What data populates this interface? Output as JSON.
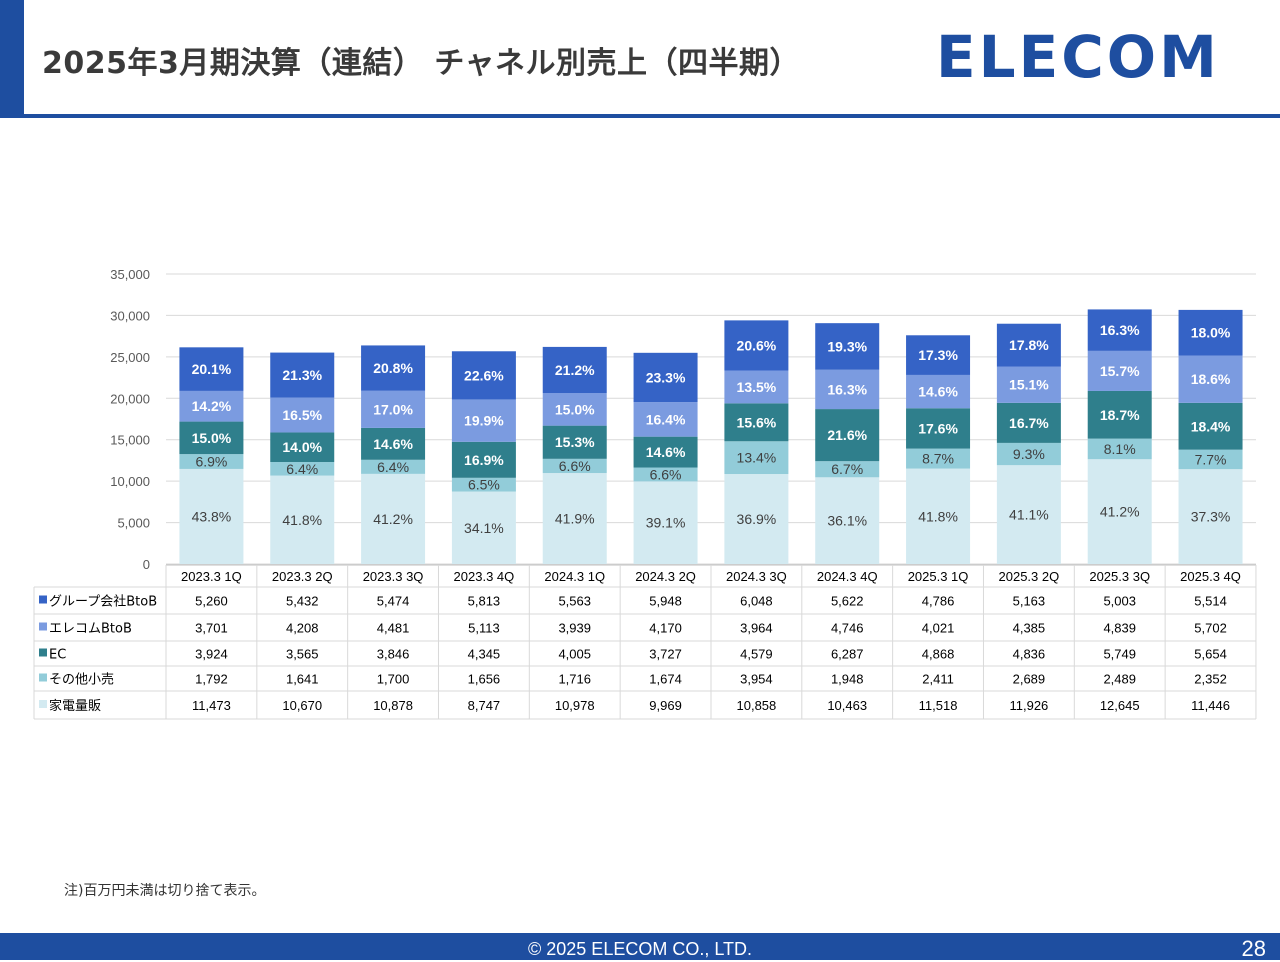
{
  "header": {
    "title": "2025年3月期決算（連結） チャネル別売上（四半期）",
    "logo_text": "ELECOM",
    "accent_color": "#1e4ea0"
  },
  "chart_data": {
    "type": "bar",
    "stacked": true,
    "title": "",
    "xlabel": "",
    "ylabel": "",
    "ylim": [
      0,
      35000
    ],
    "yticks": [
      "0",
      "5,000",
      "10,000",
      "15,000",
      "20,000",
      "25,000",
      "30,000",
      "35,000"
    ],
    "grid": true,
    "legend": "table-rows",
    "categories": [
      "2023.3 1Q",
      "2023.3 2Q",
      "2023.3 3Q",
      "2023.3 4Q",
      "2024.3 1Q",
      "2024.3 2Q",
      "2024.3 3Q",
      "2024.3 4Q",
      "2025.3 1Q",
      "2025.3 2Q",
      "2025.3 3Q",
      "2025.3 4Q"
    ],
    "series": [
      {
        "name": "家電量販",
        "color": "#d3eaf1",
        "label_color": "#3f3f3f",
        "values": [
          11473,
          10670,
          10878,
          8747,
          10978,
          9969,
          10858,
          10463,
          11518,
          11926,
          12645,
          11446
        ],
        "values_text": [
          "11,473",
          "10,670",
          "10,878",
          "8,747",
          "10,978",
          "9,969",
          "10,858",
          "10,463",
          "11,518",
          "11,926",
          "12,645",
          "11,446"
        ],
        "percents": [
          "43.8%",
          "41.8%",
          "41.2%",
          "34.1%",
          "41.9%",
          "39.1%",
          "36.9%",
          "36.1%",
          "41.8%",
          "41.1%",
          "41.2%",
          "37.3%"
        ]
      },
      {
        "name": "その他小売",
        "color": "#92ccd9",
        "label_color": "#3f3f3f",
        "values": [
          1792,
          1641,
          1700,
          1656,
          1716,
          1674,
          3954,
          1948,
          2411,
          2689,
          2489,
          2352
        ],
        "values_text": [
          "1,792",
          "1,641",
          "1,700",
          "1,656",
          "1,716",
          "1,674",
          "3,954",
          "1,948",
          "2,411",
          "2,689",
          "2,489",
          "2,352"
        ],
        "percents": [
          "6.9%",
          "6.4%",
          "6.4%",
          "6.5%",
          "6.6%",
          "6.6%",
          "13.4%",
          "6.7%",
          "8.7%",
          "9.3%",
          "8.1%",
          "7.7%"
        ]
      },
      {
        "name": "EC",
        "color": "#2f7f8c",
        "label_color": "#ffffff",
        "values": [
          3924,
          3565,
          3846,
          4345,
          4005,
          3727,
          4579,
          6287,
          4868,
          4836,
          5749,
          5654
        ],
        "values_text": [
          "3,924",
          "3,565",
          "3,846",
          "4,345",
          "4,005",
          "3,727",
          "4,579",
          "6,287",
          "4,868",
          "4,836",
          "5,749",
          "5,654"
        ],
        "percents": [
          "15.0%",
          "14.0%",
          "14.6%",
          "16.9%",
          "15.3%",
          "14.6%",
          "15.6%",
          "21.6%",
          "17.6%",
          "16.7%",
          "18.7%",
          "18.4%"
        ]
      },
      {
        "name": "エレコムBtoB",
        "color": "#7b9be0",
        "label_color": "#ffffff",
        "values": [
          3701,
          4208,
          4481,
          5113,
          3939,
          4170,
          3964,
          4746,
          4021,
          4385,
          4839,
          5702
        ],
        "values_text": [
          "3,701",
          "4,208",
          "4,481",
          "5,113",
          "3,939",
          "4,170",
          "3,964",
          "4,746",
          "4,021",
          "4,385",
          "4,839",
          "5,702"
        ],
        "percents": [
          "14.2%",
          "16.5%",
          "17.0%",
          "19.9%",
          "15.0%",
          "16.4%",
          "13.5%",
          "16.3%",
          "14.6%",
          "15.1%",
          "15.7%",
          "18.6%"
        ]
      },
      {
        "name": "グループ会社BtoB",
        "color": "#3563c6",
        "label_color": "#ffffff",
        "values": [
          5260,
          5432,
          5474,
          5813,
          5563,
          5948,
          6048,
          5622,
          4786,
          5163,
          5003,
          5514
        ],
        "values_text": [
          "5,260",
          "5,432",
          "5,474",
          "5,813",
          "5,563",
          "5,948",
          "6,048",
          "5,622",
          "4,786",
          "5,163",
          "5,003",
          "5,514"
        ],
        "percents": [
          "20.1%",
          "21.3%",
          "20.8%",
          "22.6%",
          "21.2%",
          "23.3%",
          "20.6%",
          "19.3%",
          "17.3%",
          "17.8%",
          "16.3%",
          "18.0%"
        ]
      }
    ],
    "table_row_order": [
      "グループ会社BtoB",
      "エレコムBtoB",
      "EC",
      "その他小売",
      "家電量販"
    ]
  },
  "footnote": "注)百万円未満は切り捨て表示。",
  "footer": {
    "copyright": "© 2025 ELECOM CO., LTD.",
    "page_number": "28"
  }
}
